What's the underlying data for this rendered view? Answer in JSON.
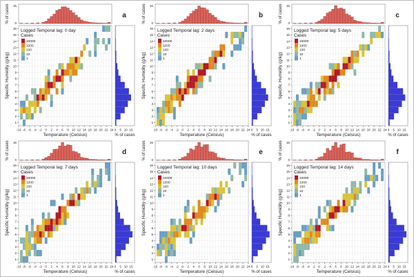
{
  "figure": {
    "panels": [
      {
        "letter": "a",
        "lag_label": "Temporal lag: 0 day",
        "shift": 0
      },
      {
        "letter": "b",
        "lag_label": "Temporal lag: 2 days",
        "shift": 1
      },
      {
        "letter": "c",
        "lag_label": "Temporal lag: 5 days",
        "shift": 2
      },
      {
        "letter": "d",
        "lag_label": "Temporal lag: 7 days",
        "shift": 3
      },
      {
        "letter": "e",
        "lag_label": "Temporal lag: 10 days",
        "shift": 4
      },
      {
        "letter": "f",
        "lag_label": "Temporal lag: 14 days",
        "shift": 5
      }
    ],
    "legend": {
      "title_line1": "Logged",
      "title_line2": "Cases",
      "levels": [
        {
          "label": "10000",
          "color": "#b2182b"
        },
        {
          "label": "1000",
          "color": "#e08a1e"
        },
        {
          "label": "100",
          "color": "#d9c33b"
        },
        {
          "label": "10",
          "color": "#8fb8a8"
        },
        {
          "label": "1",
          "color": "#6a9fc4"
        }
      ]
    },
    "colors": {
      "top_hist": "#d9625a",
      "right_hist": "#3b3bd4",
      "grid": "#e6e6e6"
    }
  },
  "chart_data": {
    "type": "heatmap",
    "xlabel": "Temperature (Celsius)",
    "ylabel": "Specific Humidity (g/kg)",
    "top_hist_ylabel": "% of cases",
    "right_hist_xlabel": "% of cases",
    "x_ticks": [
      "-10",
      "-8",
      "-6",
      "-4",
      "-2",
      "0",
      "2",
      "4",
      "6",
      "8",
      "10",
      "12",
      "14",
      "16",
      "18",
      "20",
      "22",
      "24"
    ],
    "y_ticks": [
      "1",
      "2",
      "3",
      "4",
      "5",
      "6",
      "7",
      "8",
      "9",
      "10",
      "11",
      "12",
      "13",
      "14",
      "15",
      "16"
    ],
    "top_hist_ticks": [
      "0",
      "15"
    ],
    "right_hist_ticks": [
      "0",
      "5",
      "10",
      "15"
    ],
    "xlim": [
      -10,
      24
    ],
    "ylim": [
      0.5,
      16.5
    ],
    "top_hist": {
      "x": [
        -9,
        -7,
        -5,
        -3,
        -1,
        0,
        1,
        2,
        3,
        4,
        5,
        6,
        7,
        8,
        9,
        10,
        11,
        12,
        13,
        14,
        15,
        16,
        17,
        18,
        19,
        20,
        21,
        22,
        23
      ],
      "values": [
        0.3,
        0.3,
        0.4,
        0.6,
        1,
        2,
        4,
        6,
        8,
        11,
        12,
        14,
        14,
        13,
        11,
        9,
        7,
        5,
        3,
        2,
        1.5,
        1,
        0.8,
        0.6,
        0.5,
        0.4,
        0.3,
        0.3,
        1
      ]
    },
    "right_hist": {
      "y": [
        1,
        2,
        3,
        4,
        5,
        6,
        7,
        8,
        9,
        10,
        11,
        12,
        13,
        14,
        15,
        16
      ],
      "values": [
        1,
        5,
        9,
        12,
        15,
        13,
        9,
        5,
        3,
        2,
        1,
        1,
        0.5,
        0.5,
        0.3,
        0.3
      ]
    },
    "heat_cells_note_levels": [
      1,
      10,
      100,
      1000,
      10000
    ]
  }
}
